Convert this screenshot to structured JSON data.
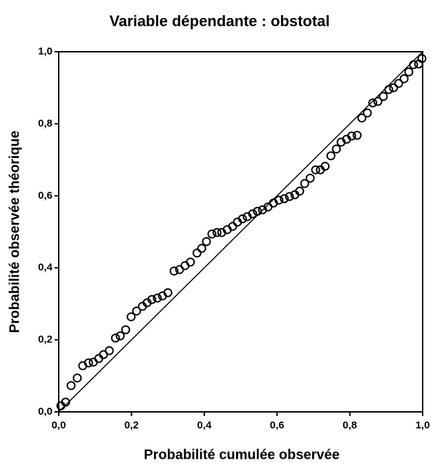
{
  "chart_data": {
    "type": "scatter",
    "title": "Variable dépendante : obstotal",
    "x_label": "Probabilité cumulée observée",
    "y_label": "Probabilité observée théorique",
    "xlim": [
      0,
      1
    ],
    "ylim": [
      0,
      1
    ],
    "xticks": [
      {
        "value": 0,
        "label": "0,0"
      },
      {
        "value": 0.2,
        "label": "0,2"
      },
      {
        "value": 0.4,
        "label": "0,4"
      },
      {
        "value": 0.6,
        "label": "0,6"
      },
      {
        "value": 0.8,
        "label": "0,8"
      },
      {
        "value": 1,
        "label": "1,0"
      }
    ],
    "yticks": [
      {
        "value": 0,
        "label": "0,0"
      },
      {
        "value": 0.2,
        "label": "0,2"
      },
      {
        "value": 0.4,
        "label": "0,4"
      },
      {
        "value": 0.6,
        "label": "0,6"
      },
      {
        "value": 0.8,
        "label": "0,8"
      },
      {
        "value": 1,
        "label": "1,0"
      }
    ],
    "color": "#000000",
    "x": [
      0.006,
      0.019,
      0.034,
      0.051,
      0.066,
      0.082,
      0.095,
      0.11,
      0.123,
      0.139,
      0.156,
      0.169,
      0.184,
      0.199,
      0.214,
      0.23,
      0.243,
      0.256,
      0.271,
      0.285,
      0.3,
      0.317,
      0.332,
      0.347,
      0.362,
      0.38,
      0.393,
      0.406,
      0.421,
      0.435,
      0.448,
      0.463,
      0.478,
      0.491,
      0.505,
      0.518,
      0.533,
      0.546,
      0.56,
      0.575,
      0.59,
      0.605,
      0.62,
      0.634,
      0.649,
      0.662,
      0.676,
      0.691,
      0.706,
      0.719,
      0.732,
      0.748,
      0.763,
      0.776,
      0.791,
      0.805,
      0.82,
      0.833,
      0.848,
      0.863,
      0.877,
      0.892,
      0.907,
      0.92,
      0.934,
      0.949,
      0.962,
      0.975,
      0.989,
      0.998
    ],
    "values": [
      0.017,
      0.027,
      0.073,
      0.094,
      0.128,
      0.136,
      0.138,
      0.148,
      0.159,
      0.17,
      0.205,
      0.211,
      0.228,
      0.264,
      0.28,
      0.293,
      0.303,
      0.312,
      0.316,
      0.322,
      0.331,
      0.391,
      0.395,
      0.406,
      0.416,
      0.441,
      0.454,
      0.473,
      0.494,
      0.498,
      0.498,
      0.506,
      0.515,
      0.527,
      0.536,
      0.542,
      0.55,
      0.557,
      0.561,
      0.569,
      0.58,
      0.588,
      0.592,
      0.598,
      0.603,
      0.613,
      0.634,
      0.649,
      0.672,
      0.672,
      0.682,
      0.711,
      0.73,
      0.749,
      0.757,
      0.766,
      0.768,
      0.816,
      0.83,
      0.858,
      0.862,
      0.876,
      0.895,
      0.9,
      0.912,
      0.925,
      0.944,
      0.964,
      0.966,
      0.981
    ]
  }
}
